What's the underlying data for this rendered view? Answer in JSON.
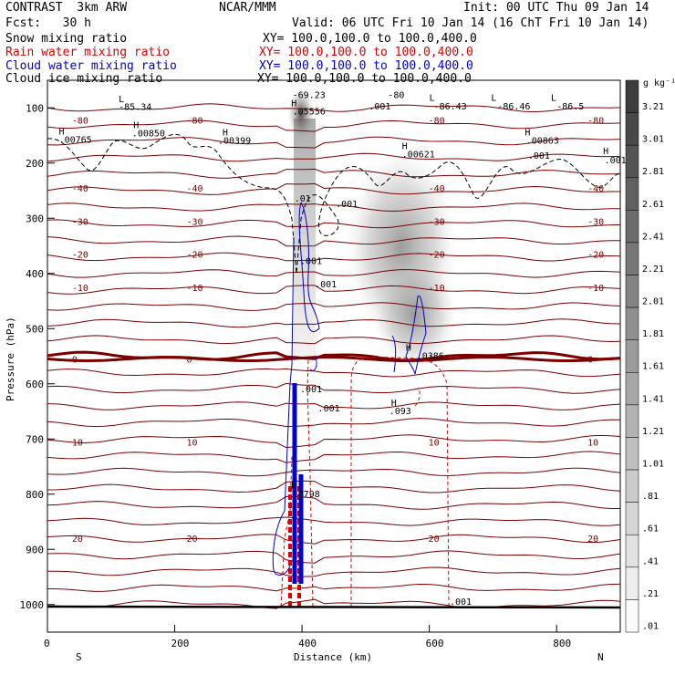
{
  "header": {
    "model": "CONTRAST  3km ARW",
    "org": "NCAR/MMM",
    "init": "Init: 00 UTC Thu 09 Jan 14",
    "fcst": "Fcst:   30 h",
    "valid": "Valid: 06 UTC Fri 10 Jan 14 (16 ChT Fri 10 Jan 14)"
  },
  "fields": [
    {
      "name": "Snow mixing ratio",
      "xy": "XY= 100.0,100.0 to 100.0,400.0",
      "color": "#000000"
    },
    {
      "name": "Rain water mixing ratio",
      "xy": "XY= 100.0,100.0 to 100.0,400.0",
      "color": "#dd0000"
    },
    {
      "name": "Cloud water mixing ratio",
      "xy": "XY= 100.0,100.0 to 100.0,400.0",
      "color": "#0000cc"
    },
    {
      "name": "Cloud ice mixing ratio",
      "xy": "XY= 100.0,100.0 to 100.0,400.0",
      "color": "#000000"
    }
  ],
  "colorbar": {
    "unit": "g kg⁻¹",
    "labels": [
      "3.21",
      "3.01",
      "2.81",
      "2.61",
      "2.41",
      "2.21",
      "2.01",
      "1.81",
      "1.61",
      "1.41",
      "1.21",
      "1.01",
      ".81",
      ".61",
      ".41",
      ".21",
      ".01"
    ]
  },
  "chart_data": {
    "type": "cross-section",
    "xlabel": "Distance (km)",
    "ylabel": "Pressure (hPa)",
    "xlim": [
      0,
      900
    ],
    "ylim": [
      1050,
      50
    ],
    "x_ticks": [
      "0",
      "200",
      "400",
      "600",
      "800"
    ],
    "y_ticks": [
      "100",
      "200",
      "300",
      "400",
      "500",
      "600",
      "700",
      "800",
      "900",
      "1000"
    ],
    "end_labels": {
      "left": "S",
      "right": "N"
    },
    "temperature_contours": [
      {
        "label": "-80",
        "p": 122
      },
      {
        "label": "-40",
        "p": 245
      },
      {
        "label": "-30",
        "p": 305
      },
      {
        "label": "-20",
        "p": 365
      },
      {
        "label": "-10",
        "p": 425
      },
      {
        "label": "0",
        "p": 555
      },
      {
        "label": "10",
        "p": 705
      },
      {
        "label": "20",
        "p": 880
      }
    ],
    "annotations": [
      {
        "text": "L",
        "x": 112,
        "p": 90
      },
      {
        "text": "-85.34",
        "x": 112,
        "p": 104
      },
      {
        "text": "-69.23",
        "x": 385,
        "p": 82
      },
      {
        "text": "-80",
        "x": 535,
        "p": 82
      },
      {
        "text": "L",
        "x": 600,
        "p": 87
      },
      {
        "text": "-86.43",
        "x": 607,
        "p": 103
      },
      {
        "text": "L",
        "x": 697,
        "p": 87
      },
      {
        "text": "-86.46",
        "x": 707,
        "p": 103
      },
      {
        "text": "L",
        "x": 791,
        "p": 87
      },
      {
        "text": "-86.5",
        "x": 800,
        "p": 103
      },
      {
        "text": "H",
        "x": 383,
        "p": 97
      },
      {
        "text": ".05556",
        "x": 385,
        "p": 112
      },
      {
        "text": ".001",
        "x": 505,
        "p": 103
      },
      {
        "text": "H",
        "x": 18,
        "p": 148
      },
      {
        "text": ".00765",
        "x": 18,
        "p": 163
      },
      {
        "text": "H",
        "x": 135,
        "p": 137
      },
      {
        "text": ".00850",
        "x": 133,
        "p": 152
      },
      {
        "text": "H",
        "x": 275,
        "p": 150
      },
      {
        "text": ".00399",
        "x": 268,
        "p": 165
      },
      {
        "text": "H",
        "x": 557,
        "p": 175
      },
      {
        "text": ".00621",
        "x": 557,
        "p": 190
      },
      {
        "text": "H",
        "x": 750,
        "p": 150
      },
      {
        "text": ".00863",
        "x": 752,
        "p": 165
      },
      {
        "text": ".001",
        "x": 755,
        "p": 192
      },
      {
        "text": "H",
        "x": 873,
        "p": 184
      },
      {
        "text": ".0010",
        "x": 875,
        "p": 200
      },
      {
        "text": ".001",
        "x": 453,
        "p": 280
      },
      {
        "text": ".01",
        "x": 388,
        "p": 270
      },
      {
        "text": ".001",
        "x": 397,
        "p": 383
      },
      {
        "text": ".001",
        "x": 420,
        "p": 425
      },
      {
        "text": "H",
        "x": 563,
        "p": 540
      },
      {
        "text": ".0386",
        "x": 580,
        "p": 555
      },
      {
        "text": "H",
        "x": 540,
        "p": 640
      },
      {
        "text": ".093",
        "x": 537,
        "p": 655
      },
      {
        "text": ".001",
        "x": 425,
        "p": 650
      },
      {
        "text": ".001",
        "x": 397,
        "p": 615
      },
      {
        "text": "H",
        "x": 383,
        "p": 790
      },
      {
        "text": ".8798",
        "x": 385,
        "p": 805
      },
      {
        "text": ".001",
        "x": 632,
        "p": 1000
      }
    ]
  }
}
